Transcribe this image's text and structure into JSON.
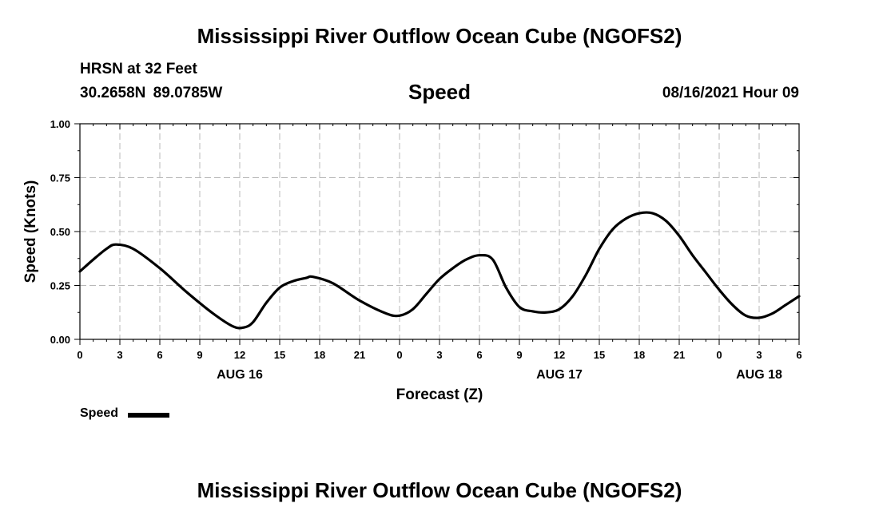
{
  "header": {
    "title": "Mississippi River Outflow Ocean Cube (NGOFS2)",
    "station": "HRSN at 32 Feet",
    "coordinates": "30.2658N  89.0785W",
    "subtitle": "Speed",
    "datetime": "08/16/2021 Hour 09"
  },
  "footer": {
    "title": "Mississippi River Outflow Ocean Cube (NGOFS2)"
  },
  "legend": {
    "label": "Speed",
    "color": "#000000"
  },
  "chart_data": {
    "type": "line",
    "title": "Speed",
    "xlabel": "Forecast (Z)",
    "ylabel": "Speed (Knots)",
    "xlim": [
      0,
      54
    ],
    "ylim": [
      0,
      1
    ],
    "grid": true,
    "x_ticks": [
      0,
      3,
      6,
      9,
      12,
      15,
      18,
      21,
      24,
      27,
      30,
      33,
      36,
      39,
      42,
      45,
      48,
      51,
      54
    ],
    "x_tick_labels": [
      "0",
      "3",
      "6",
      "9",
      "12",
      "15",
      "18",
      "21",
      "0",
      "3",
      "6",
      "9",
      "12",
      "15",
      "18",
      "21",
      "0",
      "3",
      "6"
    ],
    "y_ticks": [
      0,
      0.25,
      0.5,
      0.75,
      1.0
    ],
    "y_tick_labels": [
      "0.00",
      "0.25",
      "0.50",
      "0.75",
      "1.00"
    ],
    "date_labels": [
      {
        "x": 12,
        "label": "AUG 16"
      },
      {
        "x": 36,
        "label": "AUG 17"
      },
      {
        "x": 51,
        "label": "AUG 18"
      }
    ],
    "series": [
      {
        "name": "Speed",
        "color": "#000000",
        "x": [
          0,
          1,
          2,
          2.7,
          4,
          6,
          8,
          10,
          11.5,
          12.3,
          13,
          14,
          15,
          16,
          17,
          17.5,
          19,
          21,
          23,
          24,
          25,
          26,
          27,
          28,
          29,
          30,
          31,
          32,
          33,
          34,
          35,
          36,
          37,
          38,
          39,
          40,
          41,
          42,
          43,
          44,
          45,
          46,
          47,
          48,
          49,
          50,
          51,
          52,
          53,
          54
        ],
        "values": [
          0.315,
          0.37,
          0.42,
          0.44,
          0.42,
          0.33,
          0.22,
          0.12,
          0.06,
          0.055,
          0.08,
          0.17,
          0.24,
          0.27,
          0.285,
          0.29,
          0.26,
          0.18,
          0.12,
          0.11,
          0.14,
          0.21,
          0.28,
          0.33,
          0.37,
          0.39,
          0.37,
          0.24,
          0.15,
          0.13,
          0.125,
          0.14,
          0.2,
          0.3,
          0.42,
          0.51,
          0.56,
          0.585,
          0.585,
          0.55,
          0.48,
          0.39,
          0.31,
          0.23,
          0.16,
          0.11,
          0.1,
          0.12,
          0.16,
          0.2
        ]
      }
    ]
  }
}
